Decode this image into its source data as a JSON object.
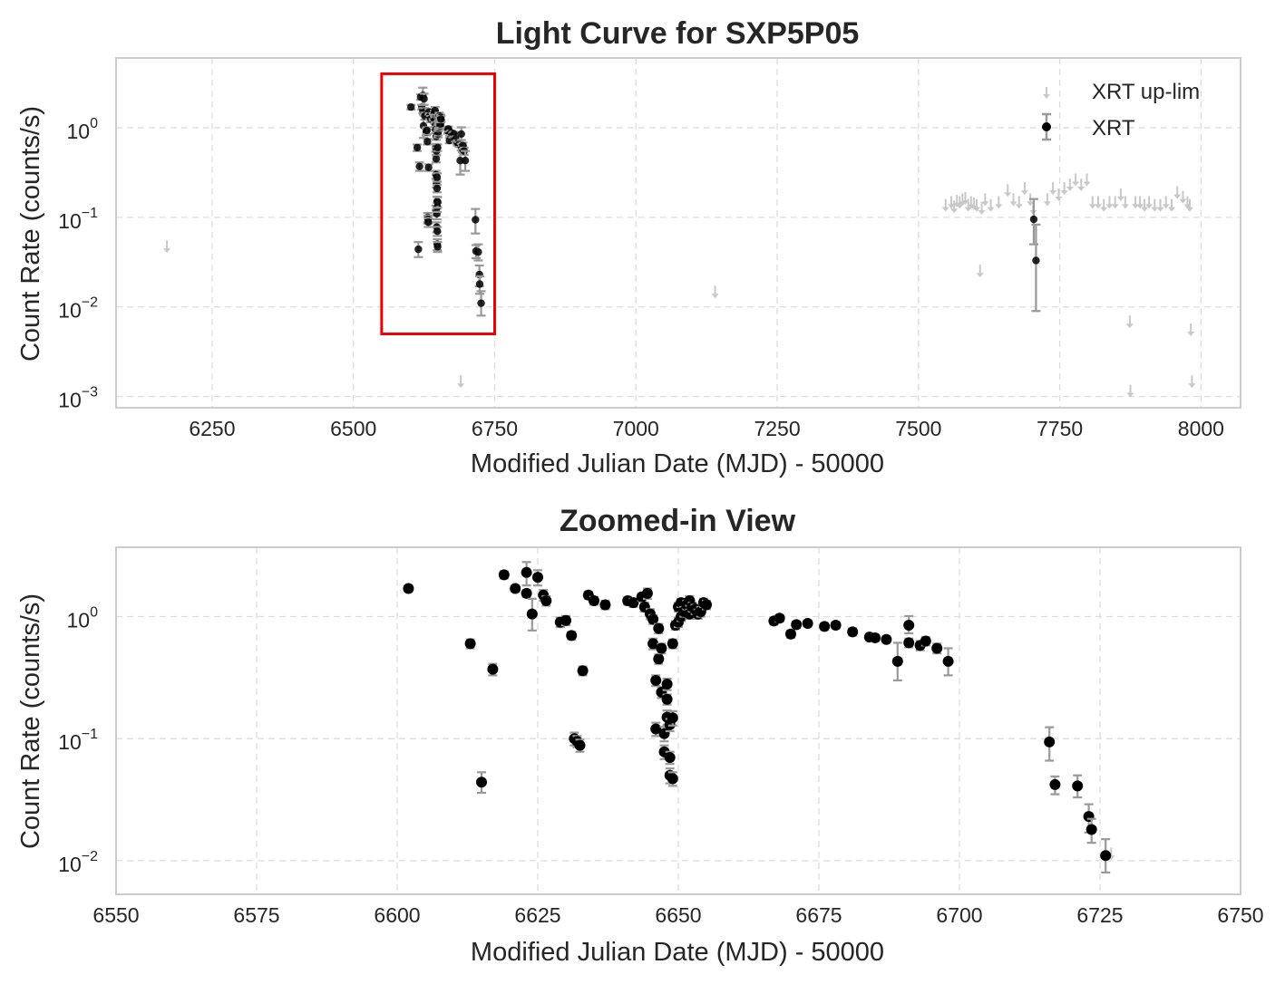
{
  "colors": {
    "background": "#ffffff",
    "grid": "#dddddd",
    "frame": "#cccccc",
    "xrt": "#000000",
    "errorbar": "#999999",
    "uplim": "#c8c8c8",
    "highlight": "#ee0000"
  },
  "chart_data": [
    {
      "type": "scatter",
      "title": "Light Curve for SXP5P05",
      "xlabel": "Modified Julian Date (MJD) - 50000",
      "ylabel": "Count Rate (counts/s)",
      "yscale": "log",
      "xlim": [
        6080,
        8070
      ],
      "ylim": [
        0.00075,
        6
      ],
      "xticks": [
        6250,
        6500,
        6750,
        7000,
        7250,
        7500,
        7750,
        8000
      ],
      "xtick_labels": [
        "6250",
        "6500",
        "6750",
        "7000",
        "7250",
        "7500",
        "7750",
        "8000"
      ],
      "ytick_labels": [
        {
          "base": "10",
          "exp": "0",
          "value": 1
        },
        {
          "base": "10",
          "exp": "−1",
          "value": 0.1
        },
        {
          "base": "10",
          "exp": "−2",
          "value": 0.01
        },
        {
          "base": "10",
          "exp": "−3",
          "value": 0.001
        }
      ],
      "grid": true,
      "legend": {
        "placement": "top-right",
        "entries": [
          "XRT up-lim",
          "XRT"
        ]
      },
      "highlight_box": {
        "x": [
          6550,
          6750
        ],
        "y": [
          0.005,
          4
        ]
      },
      "series": [
        {
          "name": "XRT up-lim",
          "kind": "upper-limit",
          "points": [
            [
              6170,
              0.045
            ],
            [
              6690,
              0.0014
            ],
            [
              7140,
              0.014
            ],
            [
              7548,
              0.13
            ],
            [
              7558,
              0.14
            ],
            [
              7563,
              0.125
            ],
            [
              7568,
              0.145
            ],
            [
              7573,
              0.14
            ],
            [
              7578,
              0.15
            ],
            [
              7583,
              0.155
            ],
            [
              7588,
              0.13
            ],
            [
              7593,
              0.14
            ],
            [
              7598,
              0.135
            ],
            [
              7603,
              0.13
            ],
            [
              7609,
              0.024
            ],
            [
              7612,
              0.12
            ],
            [
              7618,
              0.15
            ],
            [
              7628,
              0.13
            ],
            [
              7642,
              0.14
            ],
            [
              7658,
              0.19
            ],
            [
              7668,
              0.15
            ],
            [
              7678,
              0.14
            ],
            [
              7688,
              0.2
            ],
            [
              7698,
              0.15
            ],
            [
              7703,
              0.12
            ],
            [
              7728,
              0.15
            ],
            [
              7738,
              0.2
            ],
            [
              7748,
              0.17
            ],
            [
              7758,
              0.2
            ],
            [
              7768,
              0.22
            ],
            [
              7778,
              0.25
            ],
            [
              7788,
              0.22
            ],
            [
              7798,
              0.25
            ],
            [
              7808,
              0.14
            ],
            [
              7818,
              0.14
            ],
            [
              7828,
              0.13
            ],
            [
              7838,
              0.14
            ],
            [
              7848,
              0.14
            ],
            [
              7858,
              0.17
            ],
            [
              7866,
              0.14
            ],
            [
              7874,
              0.0065
            ],
            [
              7884,
              0.14
            ],
            [
              7892,
              0.14
            ],
            [
              7900,
              0.13
            ],
            [
              7908,
              0.14
            ],
            [
              7918,
              0.13
            ],
            [
              7928,
              0.13
            ],
            [
              7938,
              0.14
            ],
            [
              7948,
              0.13
            ],
            [
              7958,
              0.18
            ],
            [
              7968,
              0.16
            ],
            [
              7976,
              0.14
            ],
            [
              7980,
              0.13
            ],
            [
              7982,
              0.0053
            ],
            [
              7984,
              0.0014
            ],
            [
              7875,
              0.0011
            ]
          ]
        },
        {
          "name": "XRT",
          "kind": "detection",
          "points": [
            [
              7704,
              0.095,
              0.045,
              0.065
            ],
            [
              7708,
              0.033,
              0.024,
              0.05
            ]
          ]
        }
      ]
    },
    {
      "type": "scatter",
      "title": "Zoomed-in View",
      "xlabel": "Modified Julian Date (MJD) - 50000",
      "ylabel": "Count Rate (counts/s)",
      "yscale": "log",
      "xlim": [
        6550,
        6750
      ],
      "ylim": [
        0.0053,
        3.7
      ],
      "xticks": [
        6550,
        6575,
        6600,
        6625,
        6650,
        6675,
        6700,
        6725,
        6750
      ],
      "xtick_labels": [
        "6550",
        "6575",
        "6600",
        "6625",
        "6650",
        "6675",
        "6700",
        "6725",
        "6750"
      ],
      "ytick_labels": [
        {
          "base": "10",
          "exp": "0",
          "value": 1
        },
        {
          "base": "10",
          "exp": "−1",
          "value": 0.1
        },
        {
          "base": "10",
          "exp": "−2",
          "value": 0.01
        }
      ],
      "grid": true,
      "series": [
        {
          "name": "XRT up-lim",
          "kind": "upper-limit",
          "points": [
            [
              6727,
              0.011
            ]
          ]
        },
        {
          "name": "XRT",
          "kind": "detection",
          "points": [
            [
              6602,
              1.7,
              0.1,
              0.1
            ],
            [
              6613,
              0.6,
              0.05,
              0.05
            ],
            [
              6615,
              0.044,
              0.008,
              0.009
            ],
            [
              6617,
              0.37,
              0.04,
              0.04
            ],
            [
              6619,
              2.2,
              0.15,
              0.15
            ],
            [
              6621,
              1.7,
              0.1,
              0.1
            ],
            [
              6623,
              1.55,
              0.1,
              0.1
            ],
            [
              6623,
              2.3,
              0.5,
              0.5
            ],
            [
              6624,
              1.05,
              0.28,
              0.35
            ],
            [
              6625,
              2.1,
              0.3,
              0.3
            ],
            [
              6626,
              1.5,
              0.15,
              0.15
            ],
            [
              6626.5,
              1.35,
              0.12,
              0.12
            ],
            [
              6629,
              0.9,
              0.08,
              0.08
            ],
            [
              6630,
              0.93,
              0.08,
              0.08
            ],
            [
              6631,
              0.7,
              0.05,
              0.05
            ],
            [
              6631.5,
              0.1,
              0.012,
              0.012
            ],
            [
              6632,
              0.095,
              0.01,
              0.01
            ],
            [
              6632.5,
              0.088,
              0.01,
              0.01
            ],
            [
              6633,
              0.36,
              0.03,
              0.03
            ],
            [
              6634,
              1.5,
              0.1,
              0.1
            ],
            [
              6635,
              1.35,
              0.1,
              0.1
            ],
            [
              6637,
              1.25,
              0.1,
              0.1
            ],
            [
              6641,
              1.35,
              0.1,
              0.1
            ],
            [
              6642,
              1.3,
              0.1,
              0.1
            ],
            [
              6643.5,
              1.45,
              0.1,
              0.1
            ],
            [
              6644,
              1.2,
              0.1,
              0.1
            ],
            [
              6644.5,
              1.55,
              0.15,
              0.15
            ],
            [
              6645,
              1.05,
              0.1,
              0.1
            ],
            [
              6645.5,
              0.95,
              0.08,
              0.08
            ],
            [
              6645.5,
              0.6,
              0.06,
              0.06
            ],
            [
              6646,
              0.12,
              0.015,
              0.015
            ],
            [
              6646,
              0.3,
              0.03,
              0.03
            ],
            [
              6646.5,
              0.8,
              0.07,
              0.07
            ],
            [
              6646.5,
              0.45,
              0.04,
              0.04
            ],
            [
              6647,
              0.55,
              0.05,
              0.05
            ],
            [
              6647,
              0.24,
              0.025,
              0.025
            ],
            [
              6647.5,
              0.11,
              0.015,
              0.015
            ],
            [
              6647.5,
              0.078,
              0.01,
              0.01
            ],
            [
              6648,
              0.21,
              0.02,
              0.02
            ],
            [
              6648,
              0.15,
              0.02,
              0.02
            ],
            [
              6648,
              0.28,
              0.03,
              0.03
            ],
            [
              6648.5,
              0.13,
              0.015,
              0.015
            ],
            [
              6648.5,
              0.05,
              0.007,
              0.007
            ],
            [
              6648.5,
              0.07,
              0.008,
              0.008
            ],
            [
              6649,
              0.148,
              0.02,
              0.02
            ],
            [
              6649,
              0.047,
              0.006,
              0.006
            ],
            [
              6649,
              0.6,
              0.05,
              0.05
            ],
            [
              6649.5,
              0.85,
              0.07,
              0.07
            ],
            [
              6650,
              0.9,
              0.08,
              0.08
            ],
            [
              6650,
              1.2,
              0.1,
              0.1
            ],
            [
              6650.5,
              1.0,
              0.08,
              0.08
            ],
            [
              6650.5,
              1.3,
              0.1,
              0.1
            ],
            [
              6651,
              1.1,
              0.1,
              0.1
            ],
            [
              6651.5,
              1.25,
              0.1,
              0.1
            ],
            [
              6652,
              1.35,
              0.12,
              0.12
            ],
            [
              6652,
              1.05,
              0.09,
              0.09
            ],
            [
              6652.5,
              1.2,
              0.1,
              0.1
            ],
            [
              6653,
              1.15,
              0.1,
              0.1
            ],
            [
              6653.5,
              1.05,
              0.09,
              0.09
            ],
            [
              6654,
              1.1,
              0.1,
              0.1
            ],
            [
              6654.5,
              1.3,
              0.1,
              0.1
            ],
            [
              6655,
              1.25,
              0.1,
              0.1
            ],
            [
              6667,
              0.92,
              0.06,
              0.06
            ],
            [
              6668,
              0.97,
              0.06,
              0.06
            ],
            [
              6670,
              0.72,
              0.05,
              0.05
            ],
            [
              6671,
              0.86,
              0.05,
              0.05
            ],
            [
              6673,
              0.88,
              0.05,
              0.05
            ],
            [
              6676,
              0.83,
              0.05,
              0.05
            ],
            [
              6678,
              0.85,
              0.05,
              0.05
            ],
            [
              6681,
              0.75,
              0.05,
              0.05
            ],
            [
              6684,
              0.68,
              0.04,
              0.04
            ],
            [
              6685,
              0.67,
              0.04,
              0.04
            ],
            [
              6687,
              0.65,
              0.04,
              0.04
            ],
            [
              6689,
              0.43,
              0.13,
              0.18
            ],
            [
              6691,
              0.85,
              0.12,
              0.16
            ],
            [
              6691,
              0.61,
              0.05,
              0.05
            ],
            [
              6693,
              0.58,
              0.05,
              0.05
            ],
            [
              6694,
              0.63,
              0.05,
              0.05
            ],
            [
              6696,
              0.55,
              0.05,
              0.05
            ],
            [
              6698,
              0.43,
              0.1,
              0.12
            ],
            [
              6716,
              0.094,
              0.028,
              0.03
            ],
            [
              6717,
              0.042,
              0.007,
              0.007
            ],
            [
              6721,
              0.041,
              0.008,
              0.009
            ],
            [
              6723,
              0.023,
              0.006,
              0.006
            ],
            [
              6723.5,
              0.018,
              0.004,
              0.004
            ],
            [
              6726,
              0.011,
              0.003,
              0.004
            ]
          ]
        }
      ]
    }
  ]
}
